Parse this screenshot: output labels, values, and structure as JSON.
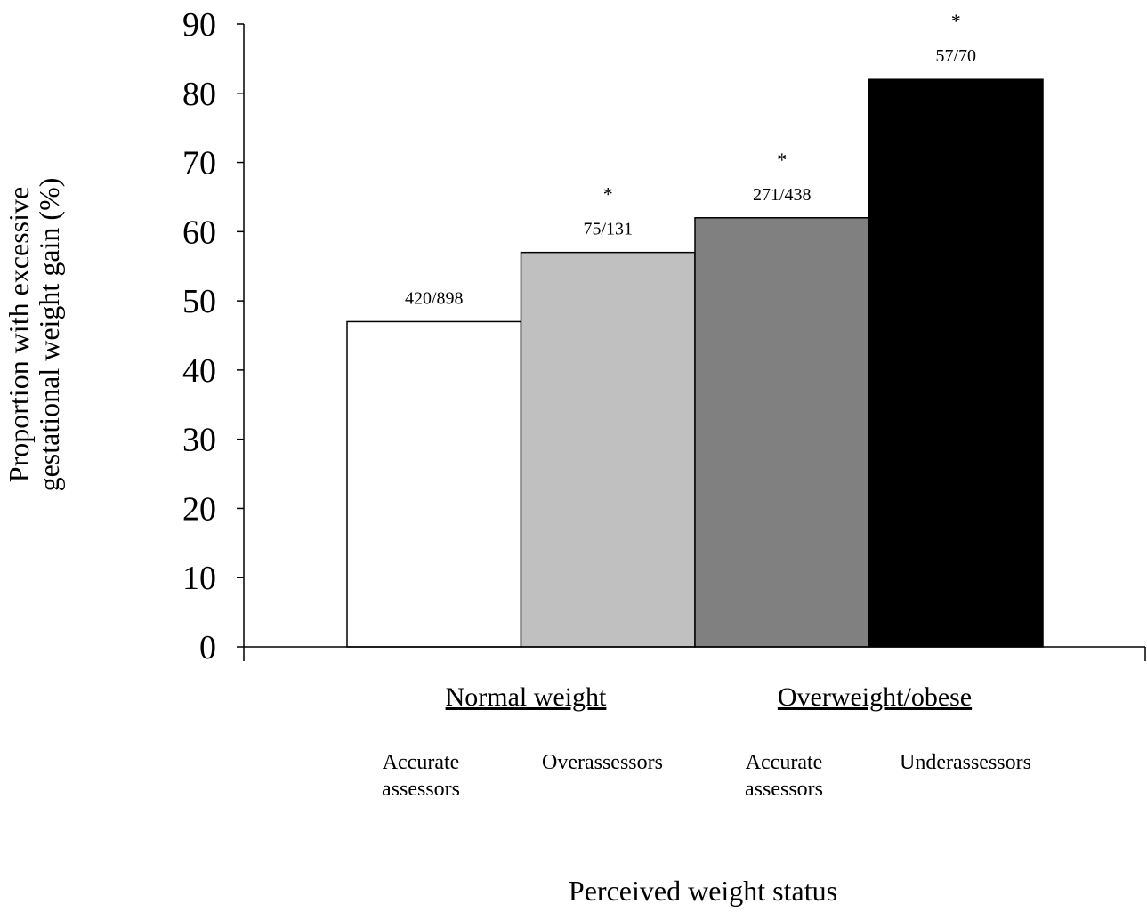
{
  "chart_data": {
    "type": "bar",
    "categories": [
      [
        "Accurate",
        "assessors"
      ],
      [
        "Overassessors"
      ],
      [
        "Accurate",
        "assessors"
      ],
      [
        "Underassessors"
      ]
    ],
    "groups": [
      {
        "label": "Normal weight",
        "categories": [
          0,
          1
        ]
      },
      {
        "label": "Overweight/obese",
        "categories": [
          2,
          3
        ]
      }
    ],
    "values": [
      47,
      57,
      62,
      82
    ],
    "bar_labels": [
      "420/898",
      "75/131",
      "271/438",
      "57/70"
    ],
    "significance": [
      "",
      "*",
      "*",
      "*"
    ],
    "bar_colors": [
      "#ffffff",
      "#c0c0c0",
      "#808080",
      "#000000"
    ],
    "ylabel": [
      "Proportion with excessive",
      "gestational weight gain (%)"
    ],
    "xlabel": "Perceived weight status",
    "ylim": [
      0,
      90
    ],
    "yticks": [
      0,
      10,
      20,
      30,
      40,
      50,
      60,
      70,
      80,
      90
    ],
    "grid": false
  }
}
